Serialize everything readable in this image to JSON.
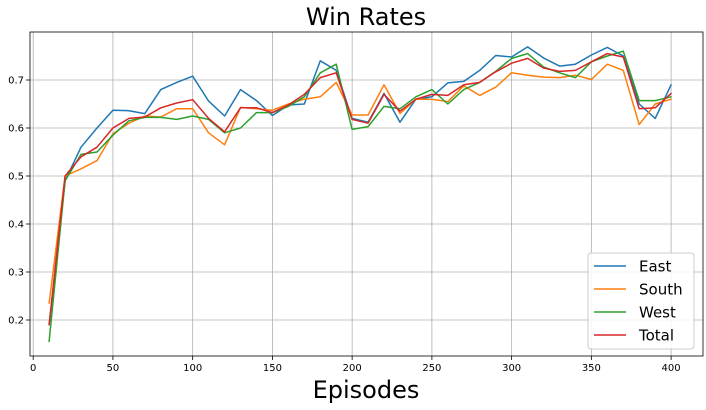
{
  "chart_data": {
    "type": "line",
    "title": "Win Rates",
    "xlabel": "Episodes",
    "ylabel": "",
    "xlim": [
      -2,
      420
    ],
    "ylim": [
      0.125,
      0.8
    ],
    "xticks": [
      0,
      50,
      100,
      150,
      200,
      250,
      300,
      350,
      400
    ],
    "yticks": [
      0.2,
      0.3,
      0.4,
      0.5,
      0.6,
      0.7
    ],
    "grid": true,
    "legend_position": "bottom-right",
    "x": [
      10,
      20,
      30,
      40,
      50,
      60,
      70,
      80,
      90,
      100,
      110,
      120,
      130,
      140,
      150,
      160,
      170,
      180,
      190,
      200,
      210,
      220,
      230,
      240,
      250,
      260,
      270,
      280,
      290,
      300,
      310,
      320,
      330,
      340,
      350,
      360,
      370,
      380,
      390,
      400
    ],
    "series": [
      {
        "name": "East",
        "color": "#1f77b4",
        "values": [
          0.19,
          0.49,
          0.56,
          0.6,
          0.637,
          0.636,
          0.63,
          0.68,
          0.695,
          0.708,
          0.656,
          0.625,
          0.68,
          0.657,
          0.626,
          0.648,
          0.65,
          0.74,
          0.72,
          0.62,
          0.612,
          0.672,
          0.612,
          0.66,
          0.665,
          0.694,
          0.697,
          0.72,
          0.751,
          0.748,
          0.769,
          0.746,
          0.729,
          0.733,
          0.752,
          0.768,
          0.75,
          0.65,
          0.62,
          0.69
        ]
      },
      {
        "name": "South",
        "color": "#ff7f0e",
        "values": [
          0.235,
          0.5,
          0.515,
          0.532,
          0.588,
          0.61,
          0.625,
          0.623,
          0.64,
          0.64,
          0.59,
          0.565,
          0.643,
          0.64,
          0.637,
          0.65,
          0.66,
          0.665,
          0.695,
          0.627,
          0.627,
          0.69,
          0.63,
          0.66,
          0.66,
          0.655,
          0.688,
          0.668,
          0.685,
          0.715,
          0.71,
          0.706,
          0.705,
          0.71,
          0.701,
          0.733,
          0.72,
          0.607,
          0.65,
          0.66
        ]
      },
      {
        "name": "West",
        "color": "#2ca02c",
        "values": [
          0.155,
          0.49,
          0.545,
          0.55,
          0.585,
          0.615,
          0.622,
          0.622,
          0.618,
          0.625,
          0.618,
          0.59,
          0.6,
          0.632,
          0.632,
          0.645,
          0.665,
          0.715,
          0.733,
          0.597,
          0.603,
          0.645,
          0.64,
          0.665,
          0.68,
          0.65,
          0.68,
          0.695,
          0.718,
          0.745,
          0.755,
          0.727,
          0.715,
          0.705,
          0.738,
          0.75,
          0.76,
          0.657,
          0.657,
          0.665
        ]
      },
      {
        "name": "Total",
        "color": "#d62728",
        "values": [
          0.19,
          0.5,
          0.54,
          0.56,
          0.6,
          0.62,
          0.623,
          0.642,
          0.652,
          0.659,
          0.62,
          0.592,
          0.642,
          0.642,
          0.632,
          0.648,
          0.67,
          0.705,
          0.715,
          0.618,
          0.61,
          0.67,
          0.635,
          0.66,
          0.67,
          0.668,
          0.69,
          0.695,
          0.717,
          0.735,
          0.745,
          0.725,
          0.718,
          0.72,
          0.738,
          0.755,
          0.748,
          0.64,
          0.642,
          0.672
        ]
      }
    ]
  }
}
